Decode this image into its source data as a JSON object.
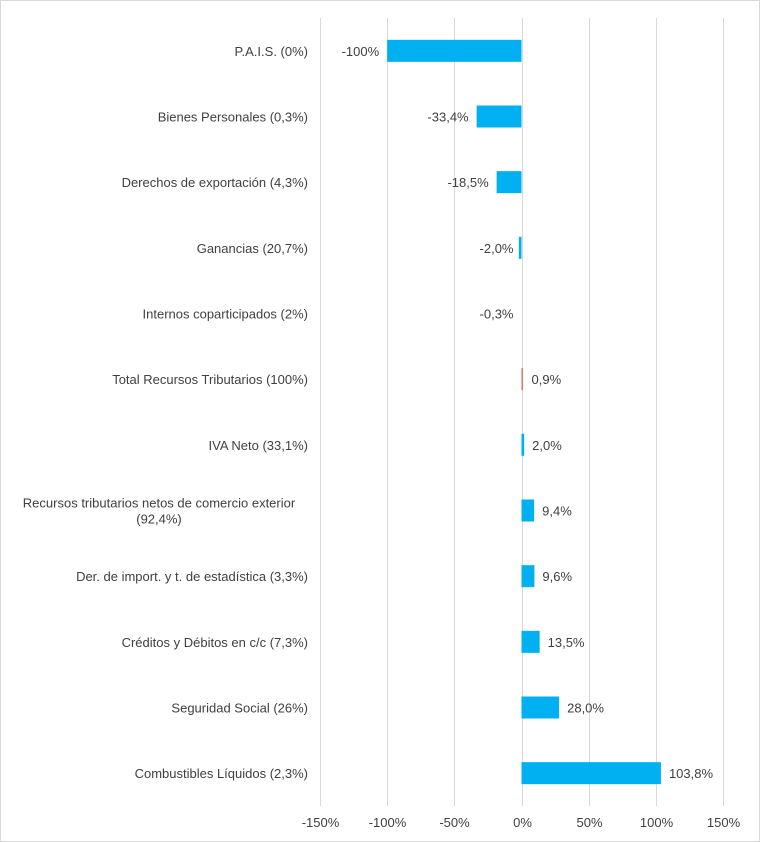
{
  "chart_data": {
    "type": "bar",
    "orientation": "horizontal",
    "title": "",
    "xlabel": "",
    "ylabel": "",
    "xlim": [
      -150,
      150
    ],
    "xticks": [
      -150,
      -100,
      -50,
      0,
      50,
      100,
      150
    ],
    "tick_labels": [
      "-150%",
      "-100%",
      "-50%",
      "0%",
      "50%",
      "100%",
      "150%"
    ],
    "grid": true,
    "legend": "none",
    "bar_color": "#00b0f0",
    "highlight_color": "#e07070",
    "categories": [
      "P.A.I.S. (0%)",
      "Bienes Personales (0,3%)",
      "Derechos de exportación (4,3%)",
      "Ganancias (20,7%)",
      "Internos coparticipados (2%)",
      "Total Recursos Tributarios (100%)",
      "IVA Neto (33,1%)",
      "Recursos tributarios netos de comercio exterior (92,4%)",
      "Der. de import. y t. de estadística (3,3%)",
      "Créditos y Débitos en c/c (7,3%)",
      "Seguridad Social (26%)",
      "Combustibles Líquidos (2,3%)"
    ],
    "category_lines": [
      [
        "P.A.I.S. (0%)"
      ],
      [
        "Bienes Personales (0,3%)"
      ],
      [
        "Derechos de exportación (4,3%)"
      ],
      [
        "Ganancias (20,7%)"
      ],
      [
        "Internos coparticipados (2%)"
      ],
      [
        "Total Recursos Tributarios (100%)"
      ],
      [
        "IVA Neto (33,1%)"
      ],
      [
        "Recursos tributarios netos de comercio exterior",
        "(92,4%)"
      ],
      [
        "Der. de import. y t. de estadística (3,3%)"
      ],
      [
        "Créditos y Débitos en c/c (7,3%)"
      ],
      [
        "Seguridad Social (26%)"
      ],
      [
        "Combustibles Líquidos (2,3%)"
      ]
    ],
    "values": [
      -100,
      -33.4,
      -18.5,
      -2.0,
      -0.3,
      0.9,
      2.0,
      9.4,
      9.6,
      13.5,
      28.0,
      103.8
    ],
    "value_labels": [
      "-100%",
      "-33,4%",
      "-18,5%",
      "-2,0%",
      "-0,3%",
      "0,9%",
      "2,0%",
      "9,4%",
      "9,6%",
      "13,5%",
      "28,0%",
      "103,8%"
    ],
    "highlight_index": 5
  }
}
